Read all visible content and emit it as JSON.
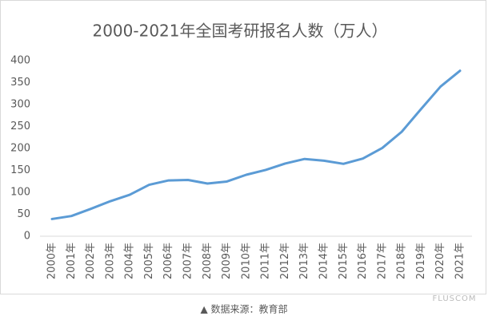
{
  "chart_data": {
    "type": "line",
    "title": "2000-2021年全国考研报名人数（万人）",
    "categories": [
      "2000年",
      "2001年",
      "2002年",
      "2003年",
      "2004年",
      "2005年",
      "2006年",
      "2007年",
      "2008年",
      "2009年",
      "2010年",
      "2011年",
      "2012年",
      "2013年",
      "2014年",
      "2015年",
      "2016年",
      "2017年",
      "2018年",
      "2019年",
      "2020年",
      "2021年"
    ],
    "series": [
      {
        "color": "#5b9bd5",
        "values": [
          39.2,
          46,
          62.4,
          79.7,
          94.5,
          117.2,
          127.1,
          128.2,
          120,
          124.6,
          140,
          151.1,
          165.6,
          176,
          172,
          164.9,
          177,
          201,
          238,
          290,
          341,
          377
        ]
      }
    ],
    "ylim": [
      0,
      400
    ],
    "yticks": [
      0,
      50,
      100,
      150,
      200,
      250,
      300,
      350,
      400
    ],
    "grid": false
  },
  "source": "▲ 数据来源：教育部",
  "watermark": "FLUSCOM"
}
